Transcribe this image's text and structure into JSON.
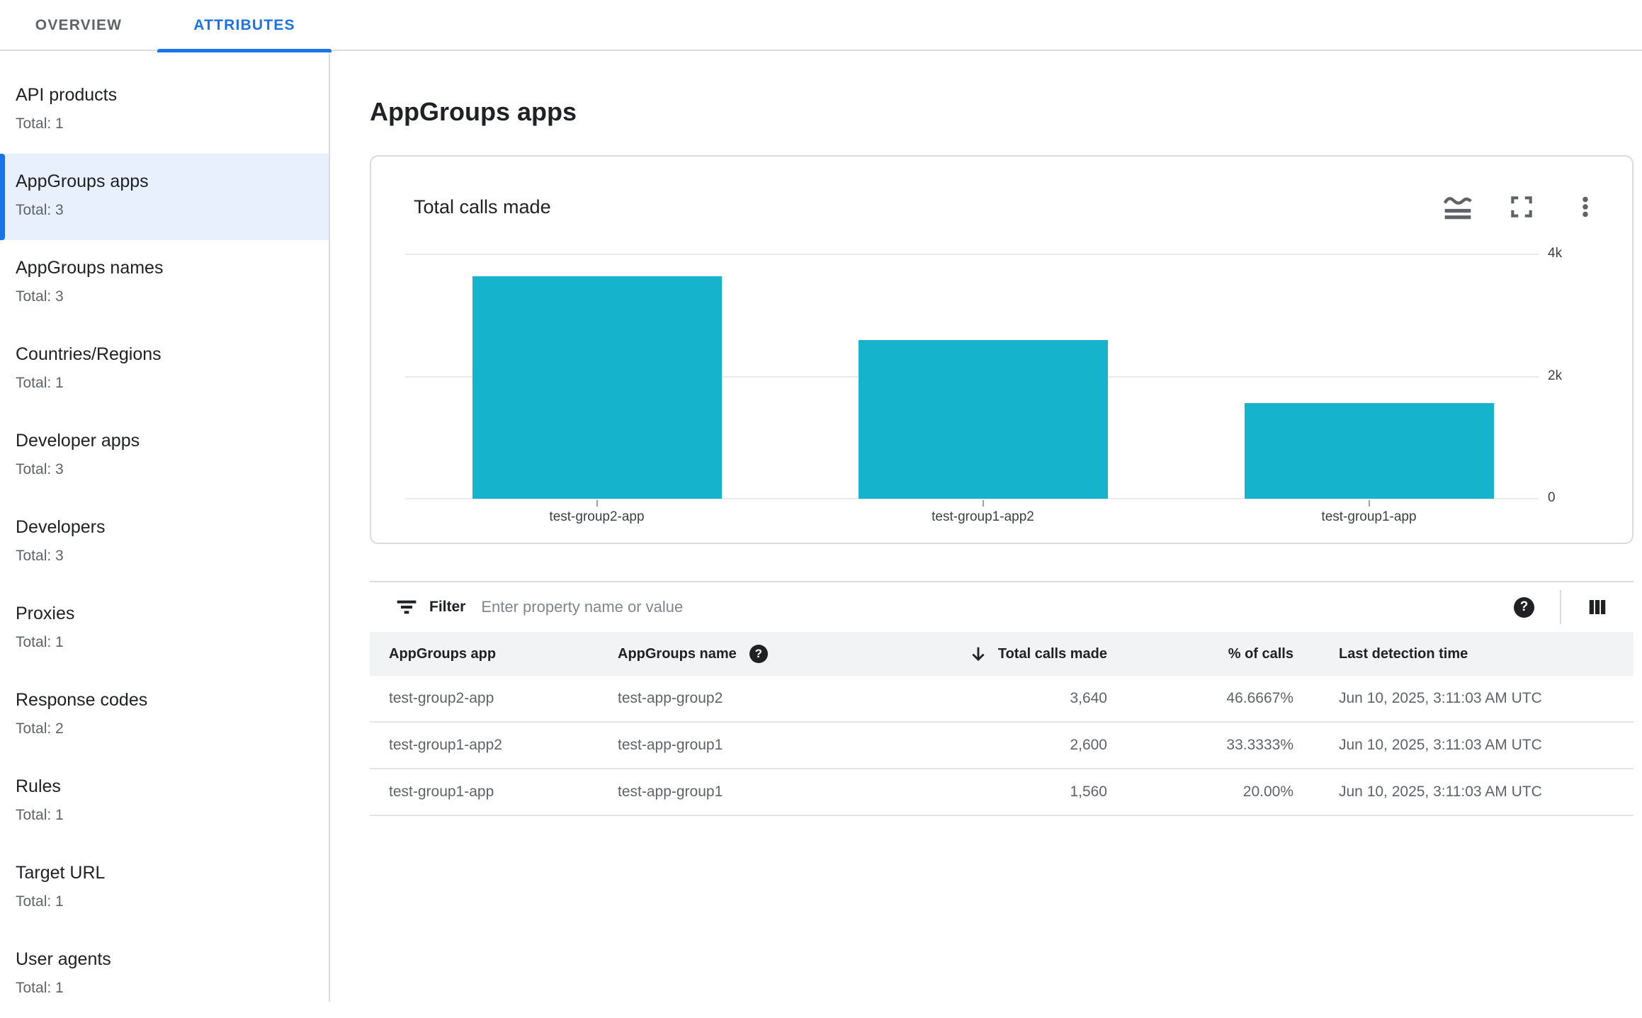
{
  "tabs": {
    "overview": "OVERVIEW",
    "attributes": "ATTRIBUTES"
  },
  "sidebar": {
    "items": [
      {
        "label": "API products",
        "total": "Total: 1",
        "selected": false
      },
      {
        "label": "AppGroups apps",
        "total": "Total: 3",
        "selected": true
      },
      {
        "label": "AppGroups names",
        "total": "Total: 3",
        "selected": false
      },
      {
        "label": "Countries/Regions",
        "total": "Total: 1",
        "selected": false
      },
      {
        "label": "Developer apps",
        "total": "Total: 3",
        "selected": false
      },
      {
        "label": "Developers",
        "total": "Total: 3",
        "selected": false
      },
      {
        "label": "Proxies",
        "total": "Total: 1",
        "selected": false
      },
      {
        "label": "Response codes",
        "total": "Total: 2",
        "selected": false
      },
      {
        "label": "Rules",
        "total": "Total: 1",
        "selected": false
      },
      {
        "label": "Target URL",
        "total": "Total: 1",
        "selected": false
      },
      {
        "label": "User agents",
        "total": "Total: 1",
        "selected": false
      }
    ]
  },
  "main": {
    "title": "AppGroups apps"
  },
  "chart_card": {
    "title": "Total calls made"
  },
  "filter": {
    "label": "Filter",
    "placeholder": "Enter property name or value"
  },
  "icons": {
    "help_glyph": "?"
  },
  "table": {
    "headers": {
      "app": "AppGroups app",
      "name": "AppGroups name",
      "calls": "Total calls made",
      "pct": "% of calls",
      "time": "Last detection time"
    },
    "rows": [
      {
        "app": "test-group2-app",
        "name": "test-app-group2",
        "calls": "3,640",
        "pct": "46.6667%",
        "time": "Jun 10, 2025, 3:11:03 AM UTC"
      },
      {
        "app": "test-group1-app2",
        "name": "test-app-group1",
        "calls": "2,600",
        "pct": "33.3333%",
        "time": "Jun 10, 2025, 3:11:03 AM UTC"
      },
      {
        "app": "test-group1-app",
        "name": "test-app-group1",
        "calls": "1,560",
        "pct": "20.00%",
        "time": "Jun 10, 2025, 3:11:03 AM UTC"
      }
    ]
  },
  "chart_data": {
    "type": "bar",
    "title": "Total calls made",
    "categories": [
      "test-group2-app",
      "test-group1-app2",
      "test-group1-app"
    ],
    "values": [
      3640,
      2600,
      1560
    ],
    "xlabel": "",
    "ylabel": "",
    "ylim": [
      0,
      4000
    ],
    "yticks": [
      {
        "label": "4k",
        "value": 4000
      },
      {
        "label": "2k",
        "value": 2000
      },
      {
        "label": "0",
        "value": 0
      }
    ],
    "grid": true,
    "legend": false,
    "bar_color": "#15B3CC"
  },
  "colors": {
    "accent": "#1A73E8",
    "selected_bg": "#E8F0FE",
    "bar": "#15B3CC",
    "border": "#DADCE0",
    "table_header_bg": "#F1F3F4",
    "text_primary": "#202124",
    "text_secondary": "#5F6368"
  }
}
